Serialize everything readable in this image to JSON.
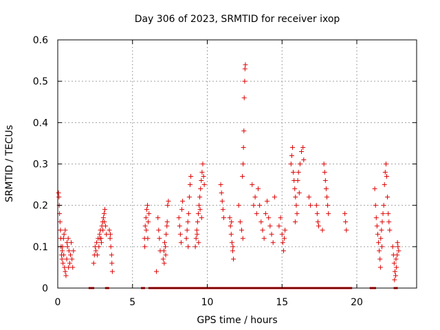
{
  "chart_data": {
    "type": "scatter",
    "title": "Day 306 of 2023, SRMTID for receiver ixop",
    "xlabel": "GPS time / hours",
    "ylabel": "SRMTID / TECUs",
    "xlim": [
      0,
      24
    ],
    "ylim": [
      0,
      0.6
    ],
    "xticks": [
      0,
      5,
      10,
      15,
      20
    ],
    "yticks": [
      0,
      0.1,
      0.2,
      0.3,
      0.4,
      0.5,
      0.6
    ],
    "xtick_labels": [
      "0",
      "5",
      "10",
      "15",
      "20"
    ],
    "ytick_labels": [
      "0",
      "0.1",
      "0.2",
      "0.3",
      "0.4",
      "0.5",
      "0.6"
    ],
    "grid": true,
    "marker": "+",
    "color": "#dd0000",
    "series": [
      {
        "name": "SRMTID",
        "points": [
          [
            0.05,
            0.23
          ],
          [
            0.08,
            0.22
          ],
          [
            0.1,
            0.2
          ],
          [
            0.12,
            0.18
          ],
          [
            0.15,
            0.16
          ],
          [
            0.18,
            0.14
          ],
          [
            0.2,
            0.12
          ],
          [
            0.22,
            0.1
          ],
          [
            0.25,
            0.08
          ],
          [
            0.28,
            0.07
          ],
          [
            0.3,
            0.09
          ],
          [
            0.35,
            0.06
          ],
          [
            0.4,
            0.08
          ],
          [
            0.45,
            0.05
          ],
          [
            0.5,
            0.04
          ],
          [
            0.55,
            0.03
          ],
          [
            0.6,
            0.07
          ],
          [
            0.65,
            0.1
          ],
          [
            0.7,
            0.12
          ],
          [
            0.75,
            0.09
          ],
          [
            0.8,
            0.06
          ],
          [
            0.85,
            0.08
          ],
          [
            0.9,
            0.11
          ],
          [
            0.95,
            0.07
          ],
          [
            1.0,
            0.05
          ],
          [
            1.05,
            0.09
          ],
          [
            0.42,
            0.13
          ],
          [
            0.5,
            0.14
          ],
          [
            0.62,
            0.11
          ],
          [
            0.72,
            0.05
          ],
          [
            0.32,
            0.1
          ],
          [
            0.38,
            0.12
          ],
          [
            2.4,
            0.06
          ],
          [
            2.45,
            0.08
          ],
          [
            2.5,
            0.1
          ],
          [
            2.55,
            0.09
          ],
          [
            2.6,
            0.11
          ],
          [
            2.65,
            0.08
          ],
          [
            2.7,
            0.12
          ],
          [
            2.75,
            0.1
          ],
          [
            2.8,
            0.13
          ],
          [
            2.85,
            0.14
          ],
          [
            2.9,
            0.12
          ],
          [
            2.95,
            0.15
          ],
          [
            3.0,
            0.16
          ],
          [
            3.05,
            0.17
          ],
          [
            3.1,
            0.18
          ],
          [
            3.15,
            0.19
          ],
          [
            3.2,
            0.15
          ],
          [
            3.25,
            0.13
          ],
          [
            2.82,
            0.12
          ],
          [
            2.92,
            0.11
          ],
          [
            3.02,
            0.14
          ],
          [
            3.12,
            0.16
          ],
          [
            3.45,
            0.14
          ],
          [
            3.5,
            0.12
          ],
          [
            3.55,
            0.1
          ],
          [
            3.6,
            0.08
          ],
          [
            3.62,
            0.06
          ],
          [
            3.65,
            0.04
          ],
          [
            3.52,
            0.13
          ],
          [
            5.8,
            0.12
          ],
          [
            5.85,
            0.15
          ],
          [
            5.9,
            0.17
          ],
          [
            5.95,
            0.19
          ],
          [
            6.0,
            0.2
          ],
          [
            6.05,
            0.16
          ],
          [
            6.1,
            0.18
          ],
          [
            5.82,
            0.1
          ],
          [
            5.92,
            0.14
          ],
          [
            6.02,
            0.12
          ],
          [
            6.7,
            0.17
          ],
          [
            6.75,
            0.14
          ],
          [
            6.8,
            0.12
          ],
          [
            6.85,
            0.09
          ],
          [
            6.6,
            0.04
          ],
          [
            7.05,
            0.07
          ],
          [
            7.1,
            0.09
          ],
          [
            7.15,
            0.11
          ],
          [
            7.2,
            0.1
          ],
          [
            7.25,
            0.13
          ],
          [
            7.3,
            0.15
          ],
          [
            7.35,
            0.2
          ],
          [
            7.4,
            0.21
          ],
          [
            7.12,
            0.06
          ],
          [
            7.22,
            0.08
          ],
          [
            7.32,
            0.16
          ],
          [
            8.1,
            0.17
          ],
          [
            8.15,
            0.15
          ],
          [
            8.2,
            0.13
          ],
          [
            8.25,
            0.11
          ],
          [
            8.3,
            0.19
          ],
          [
            8.35,
            0.21
          ],
          [
            8.6,
            0.12
          ],
          [
            8.65,
            0.14
          ],
          [
            8.7,
            0.16
          ],
          [
            8.75,
            0.18
          ],
          [
            8.8,
            0.22
          ],
          [
            8.85,
            0.25
          ],
          [
            8.9,
            0.27
          ],
          [
            8.72,
            0.1
          ],
          [
            9.2,
            0.1
          ],
          [
            9.25,
            0.12
          ],
          [
            9.3,
            0.14
          ],
          [
            9.35,
            0.16
          ],
          [
            9.4,
            0.18
          ],
          [
            9.45,
            0.2
          ],
          [
            9.5,
            0.22
          ],
          [
            9.55,
            0.24
          ],
          [
            9.6,
            0.26
          ],
          [
            9.65,
            0.28
          ],
          [
            9.7,
            0.3
          ],
          [
            9.75,
            0.27
          ],
          [
            9.8,
            0.25
          ],
          [
            9.32,
            0.13
          ],
          [
            9.42,
            0.11
          ],
          [
            9.52,
            0.19
          ],
          [
            9.62,
            0.17
          ],
          [
            10.9,
            0.25
          ],
          [
            10.95,
            0.23
          ],
          [
            11.0,
            0.21
          ],
          [
            11.05,
            0.19
          ],
          [
            11.1,
            0.17
          ],
          [
            11.5,
            0.17
          ],
          [
            11.55,
            0.15
          ],
          [
            11.6,
            0.13
          ],
          [
            11.65,
            0.11
          ],
          [
            11.7,
            0.09
          ],
          [
            11.75,
            0.07
          ],
          [
            11.62,
            0.16
          ],
          [
            11.72,
            0.1
          ],
          [
            12.1,
            0.2
          ],
          [
            12.2,
            0.16
          ],
          [
            12.3,
            0.14
          ],
          [
            12.35,
            0.27
          ],
          [
            12.4,
            0.3
          ],
          [
            12.42,
            0.34
          ],
          [
            12.45,
            0.38
          ],
          [
            12.47,
            0.46
          ],
          [
            12.5,
            0.5
          ],
          [
            12.52,
            0.53
          ],
          [
            12.55,
            0.54
          ],
          [
            12.38,
            0.12
          ],
          [
            13.0,
            0.25
          ],
          [
            13.1,
            0.2
          ],
          [
            13.2,
            0.22
          ],
          [
            13.3,
            0.18
          ],
          [
            13.4,
            0.24
          ],
          [
            13.5,
            0.2
          ],
          [
            13.6,
            0.16
          ],
          [
            13.7,
            0.14
          ],
          [
            13.8,
            0.12
          ],
          [
            13.9,
            0.18
          ],
          [
            14.0,
            0.21
          ],
          [
            14.1,
            0.17
          ],
          [
            14.2,
            0.15
          ],
          [
            14.3,
            0.13
          ],
          [
            14.4,
            0.11
          ],
          [
            14.5,
            0.22
          ],
          [
            14.8,
            0.15
          ],
          [
            14.9,
            0.17
          ],
          [
            15.0,
            0.13
          ],
          [
            15.05,
            0.11
          ],
          [
            15.1,
            0.09
          ],
          [
            15.15,
            0.12
          ],
          [
            15.2,
            0.14
          ],
          [
            15.6,
            0.3
          ],
          [
            15.65,
            0.32
          ],
          [
            15.7,
            0.34
          ],
          [
            15.75,
            0.28
          ],
          [
            15.8,
            0.26
          ],
          [
            15.85,
            0.24
          ],
          [
            15.9,
            0.22
          ],
          [
            15.95,
            0.2
          ],
          [
            16.0,
            0.18
          ],
          [
            16.05,
            0.26
          ],
          [
            16.1,
            0.28
          ],
          [
            16.2,
            0.3
          ],
          [
            16.3,
            0.33
          ],
          [
            16.4,
            0.34
          ],
          [
            16.45,
            0.31
          ],
          [
            16.15,
            0.23
          ],
          [
            15.88,
            0.16
          ],
          [
            16.8,
            0.22
          ],
          [
            16.9,
            0.2
          ],
          [
            17.3,
            0.2
          ],
          [
            17.35,
            0.18
          ],
          [
            17.4,
            0.16
          ],
          [
            17.45,
            0.15
          ],
          [
            17.7,
            0.14
          ],
          [
            17.8,
            0.3
          ],
          [
            17.85,
            0.28
          ],
          [
            17.9,
            0.26
          ],
          [
            17.95,
            0.24
          ],
          [
            18.0,
            0.22
          ],
          [
            18.05,
            0.2
          ],
          [
            18.1,
            0.18
          ],
          [
            19.2,
            0.18
          ],
          [
            19.25,
            0.16
          ],
          [
            19.3,
            0.14
          ],
          [
            21.2,
            0.24
          ],
          [
            21.25,
            0.2
          ],
          [
            21.3,
            0.17
          ],
          [
            21.35,
            0.15
          ],
          [
            21.4,
            0.13
          ],
          [
            21.45,
            0.11
          ],
          [
            21.5,
            0.09
          ],
          [
            21.55,
            0.07
          ],
          [
            21.6,
            0.12
          ],
          [
            21.65,
            0.14
          ],
          [
            21.7,
            0.16
          ],
          [
            21.75,
            0.18
          ],
          [
            21.8,
            0.2
          ],
          [
            21.85,
            0.25
          ],
          [
            21.9,
            0.28
          ],
          [
            21.95,
            0.3
          ],
          [
            22.0,
            0.27
          ],
          [
            22.05,
            0.22
          ],
          [
            22.1,
            0.18
          ],
          [
            22.15,
            0.16
          ],
          [
            22.2,
            0.14
          ],
          [
            21.58,
            0.05
          ],
          [
            21.68,
            0.1
          ],
          [
            22.4,
            0.1
          ],
          [
            22.45,
            0.08
          ],
          [
            22.5,
            0.06
          ],
          [
            22.55,
            0.04
          ],
          [
            22.6,
            0.03
          ],
          [
            22.65,
            0.05
          ],
          [
            22.7,
            0.08
          ],
          [
            22.75,
            0.1
          ],
          [
            22.8,
            0.09
          ],
          [
            22.52,
            0.02
          ],
          [
            22.62,
            0.07
          ],
          [
            22.72,
            0.11
          ]
        ],
        "zero_x": [
          2.2,
          2.3,
          3.3,
          5.7,
          6.2,
          6.35,
          6.5,
          6.65,
          6.8,
          6.95,
          7.1,
          7.25,
          7.4,
          7.55,
          7.7,
          7.85,
          8.0,
          8.15,
          8.3,
          8.45,
          8.6,
          8.75,
          8.9,
          9.05,
          9.2,
          9.35,
          9.5,
          9.65,
          9.8,
          9.95,
          10.1,
          10.25,
          10.4,
          10.55,
          10.7,
          10.85,
          11.0,
          11.15,
          11.3,
          11.45,
          11.6,
          11.75,
          11.9,
          12.05,
          12.2,
          12.35,
          12.5,
          12.65,
          12.8,
          12.95,
          13.1,
          13.25,
          13.4,
          13.55,
          13.7,
          13.85,
          14.0,
          14.15,
          14.3,
          14.45,
          14.6,
          14.75,
          14.9,
          15.05,
          15.2,
          15.35,
          15.5,
          15.65,
          15.8,
          15.95,
          16.1,
          16.25,
          16.4,
          16.55,
          16.7,
          16.85,
          17.0,
          17.15,
          17.3,
          17.45,
          17.6,
          17.75,
          17.9,
          18.05,
          18.2,
          18.35,
          18.5,
          18.65,
          18.8,
          18.95,
          19.1,
          19.25,
          19.4,
          19.55,
          21.0,
          21.15,
          22.6
        ]
      }
    ]
  }
}
